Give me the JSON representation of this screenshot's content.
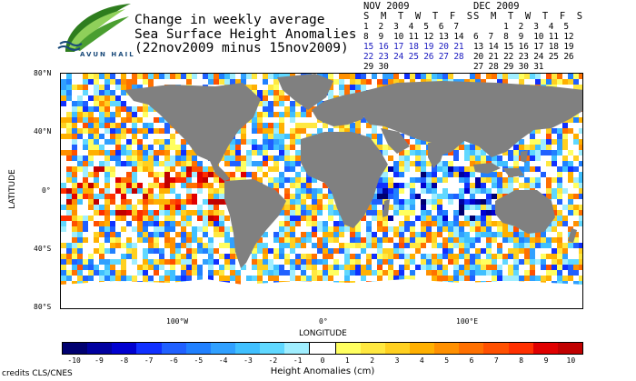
{
  "logo": {
    "text": "AVUN HAIL",
    "colors": {
      "leaf_dark": "#2e7d1e",
      "leaf_light": "#8fd05a",
      "waves": "#1a4a7a"
    }
  },
  "title": {
    "line1": "Change in weekly average",
    "line2": "Sea Surface Height Anomalies",
    "line3": "(22nov2009 minus 15nov2009)"
  },
  "calendars": [
    {
      "month": "NOV 2009",
      "header": "S  M  T  W  T  F  S",
      "rows": [
        {
          "text": "1  2  3  4  5  6  7",
          "highlight": false
        },
        {
          "text": "8  9  10 11 12 13 14",
          "highlight": false
        },
        {
          "text": "15 16 17 18 19 20 21",
          "highlight": true
        },
        {
          "text": "22 23 24 25 26 27 28",
          "highlight": true
        },
        {
          "text": "29 30",
          "highlight": false
        }
      ]
    },
    {
      "month": "DEC 2009",
      "header": "S  M  T  W  T  F  S",
      "rows": [
        {
          "text": "      1  2  3  4  5",
          "highlight": false
        },
        {
          "text": "6  7  8  9  10 11 12",
          "highlight": false
        },
        {
          "text": "13 14 15 16 17 18 19",
          "highlight": false
        },
        {
          "text": "20 21 22 23 24 25 26",
          "highlight": false
        },
        {
          "text": "27 28 29 30 31",
          "highlight": false
        }
      ]
    }
  ],
  "axes": {
    "lat_labels": [
      "80°N",
      "40°N",
      "0°",
      "40°S",
      "80°S"
    ],
    "lon_labels": [
      "100°W",
      "0°",
      "100°E"
    ],
    "ylabel": "LATITUDE",
    "xlabel": "LONGITUDE"
  },
  "colorbar": {
    "title": "Height Anomalies (cm)",
    "labels": [
      "-10",
      "-9",
      "-8",
      "-7",
      "-6",
      "-5",
      "-4",
      "-3",
      "-2",
      "-1",
      "0",
      "1",
      "2",
      "3",
      "4",
      "5",
      "6",
      "7",
      "8",
      "9",
      "10"
    ],
    "colors": [
      "#000070",
      "#0000a0",
      "#0000d0",
      "#1030ff",
      "#2060ff",
      "#2080ff",
      "#30a0ff",
      "#40c0ff",
      "#60d8ff",
      "#a0eeff",
      "#ffffff",
      "#ffff60",
      "#ffe840",
      "#ffd020",
      "#ffb000",
      "#ff9000",
      "#ff7000",
      "#ff5000",
      "#ff3000",
      "#e00000",
      "#c00000"
    ]
  },
  "credits": "credits CLS/CNES",
  "map_colors": {
    "land": "#808080",
    "ice": "#ffffff"
  }
}
